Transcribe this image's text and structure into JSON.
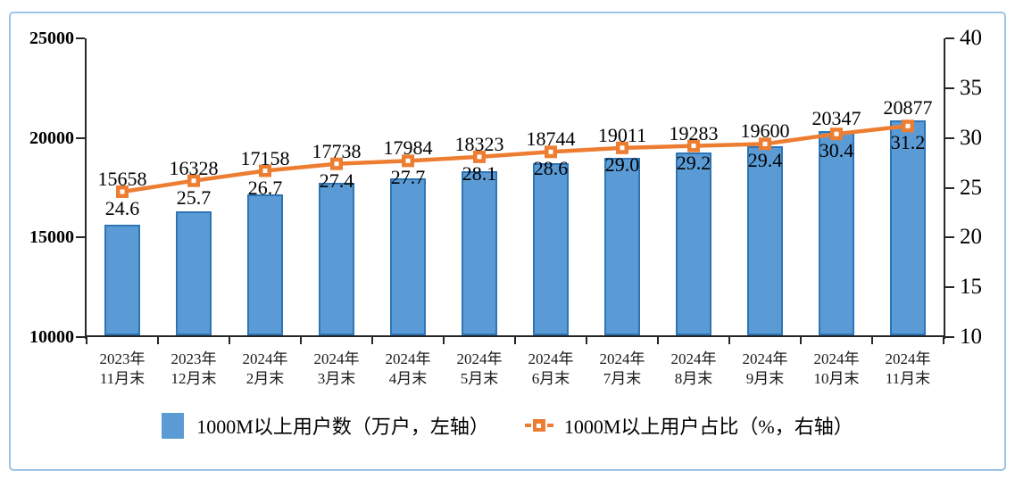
{
  "chart_data": {
    "type": "bar+line",
    "categories": [
      "2023年11月末",
      "2023年12月末",
      "2024年2月末",
      "2024年3月末",
      "2024年4月末",
      "2024年5月末",
      "2024年6月末",
      "2024年7月末",
      "2024年8月末",
      "2024年9月末",
      "2024年10月末",
      "2024年11月末"
    ],
    "category_lines": [
      [
        "2023年",
        "11月末"
      ],
      [
        "2023年",
        "12月末"
      ],
      [
        "2024年",
        "2月末"
      ],
      [
        "2024年",
        "3月末"
      ],
      [
        "2024年",
        "4月末"
      ],
      [
        "2024年",
        "5月末"
      ],
      [
        "2024年",
        "6月末"
      ],
      [
        "2024年",
        "7月末"
      ],
      [
        "2024年",
        "8月末"
      ],
      [
        "2024年",
        "9月末"
      ],
      [
        "2024年",
        "10月末"
      ],
      [
        "2024年",
        "11月末"
      ]
    ],
    "series": [
      {
        "name": "1000M以上用户数（万户，左轴）",
        "type": "bar",
        "axis": "left",
        "values": [
          15658,
          16328,
          17158,
          17738,
          17984,
          18323,
          18744,
          19011,
          19283,
          19600,
          20347,
          20877
        ],
        "fill": "#5B9BD5",
        "stroke": "#2E75B6"
      },
      {
        "name": "1000M以上用户占比（%，右轴）",
        "type": "line",
        "axis": "right",
        "values": [
          24.6,
          25.7,
          26.7,
          27.4,
          27.7,
          28.1,
          28.6,
          29.0,
          29.2,
          29.4,
          30.4,
          31.2
        ],
        "color": "#ED7D31",
        "marker": "square-with-white-center"
      }
    ],
    "left_axis": {
      "min": 10000,
      "max": 25000,
      "step": 5000,
      "tick_labels": [
        "25000",
        "20000",
        "15000",
        "10000"
      ]
    },
    "right_axis": {
      "min": 10,
      "max": 40,
      "step": 5,
      "tick_labels": [
        "40",
        "35",
        "30",
        "25",
        "20",
        "15",
        "10"
      ]
    },
    "legend_position": "bottom",
    "grid": "off",
    "title": "",
    "frame_color": "#9DC3E6",
    "axis_color": "#262626",
    "label_color": "#000000"
  }
}
